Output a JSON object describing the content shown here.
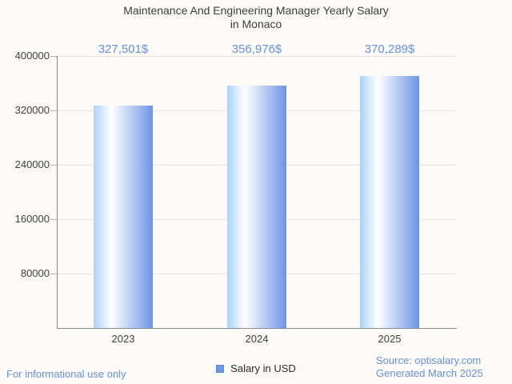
{
  "title": {
    "line1": "Maintenance And Engineering Manager Yearly Salary",
    "line2": "in Monaco"
  },
  "chart_data": {
    "type": "bar",
    "title": "Maintenance And Engineering Manager Yearly Salary in Monaco",
    "categories": [
      "2023",
      "2024",
      "2025"
    ],
    "series": [
      {
        "name": "Salary in USD",
        "values": [
          327501,
          356976,
          370289
        ]
      }
    ],
    "value_labels": [
      "327,501$",
      "356,976$",
      "370,289$"
    ],
    "xlabel": "",
    "ylabel": "",
    "ylim": [
      0,
      400000
    ],
    "yticks": [
      80000,
      160000,
      240000,
      320000,
      400000
    ],
    "grid": true,
    "legend_position": "bottom"
  },
  "legend": {
    "label": "Salary in USD"
  },
  "footer": {
    "disclaimer": "For informational use only",
    "source": "Source: optisalary.com",
    "generated": "Generated March 2025"
  },
  "colors": {
    "background": "#fcfbf8",
    "accent_blue": "#6690e0",
    "bar_gradient_left": "#a9d3f9",
    "bar_gradient_mid": "#ffffff",
    "bar_gradient_right": "#6d94e7",
    "legend_swatch": "#6c99e3",
    "text_gray": "#3f3f3f",
    "gridline": "#e7e5e2",
    "axis": "#85898d"
  }
}
